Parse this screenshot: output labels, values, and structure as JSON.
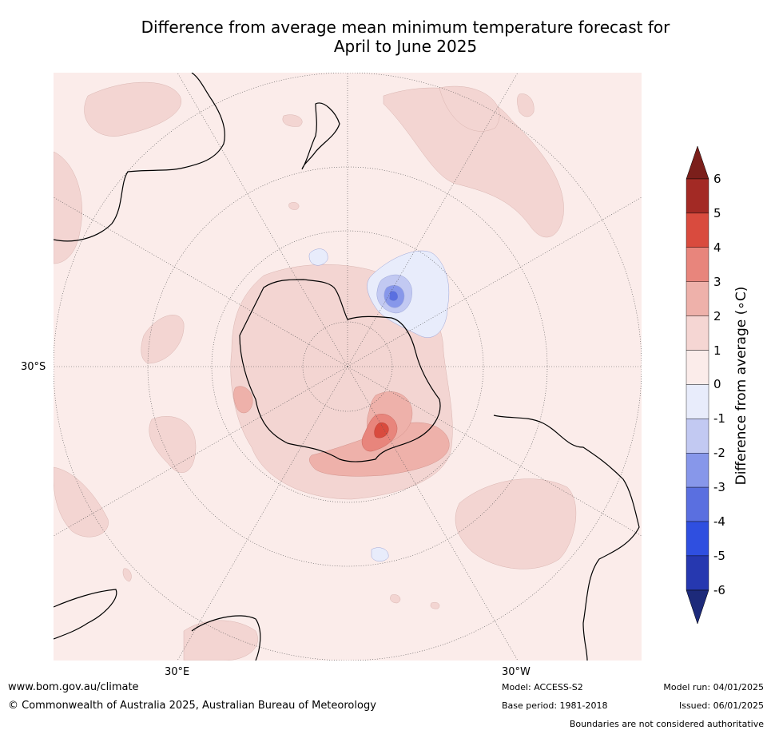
{
  "title_line1": "Difference from average mean minimum temperature forecast for",
  "title_line2": "April to June 2025",
  "axis_labels": {
    "lat": "30°S",
    "lon_east": "30°E",
    "lon_west": "30°W"
  },
  "colorbar": {
    "label": "Difference from average (∘C)",
    "ticks": [
      "6",
      "5",
      "4",
      "3",
      "2",
      "1",
      "0",
      "-1",
      "-2",
      "-3",
      "-4",
      "-5",
      "-6"
    ],
    "warm_colors": [
      "#a32a25",
      "#d94b3e",
      "#e8857c",
      "#eeb1aa",
      "#f5d6d3",
      "#fbecea"
    ],
    "cool_colors": [
      "#e8ecfb",
      "#c2c9f2",
      "#8797ea",
      "#5a6fe0",
      "#2f4fe0",
      "#2638b0"
    ],
    "top_cap_color": "#7b1f1b",
    "bottom_cap_color": "#1d2a7a"
  },
  "footer": {
    "url": "www.bom.gov.au/climate",
    "copyright": "© Commonwealth of Australia 2025, Australian Bureau of Meteorology",
    "model": "Model: ACCESS-S2",
    "base_period": "Base period: 1981-2018",
    "model_run": "Model run: 04/01/2025",
    "issued": "Issued: 06/01/2025",
    "disclaimer": "Boundaries are not considered authoritative"
  }
}
